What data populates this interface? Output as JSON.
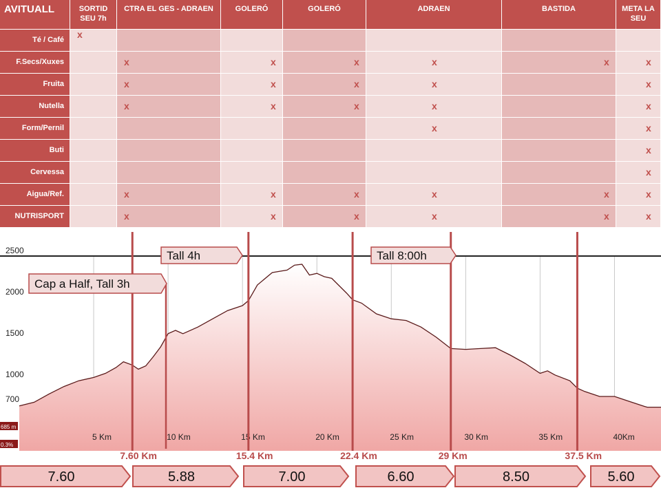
{
  "table": {
    "corner_label": "AVITUALL",
    "columns": [
      "SORTID SEU 7h",
      "CTRA EL GES - ADRAEN",
      "GOLERÓ",
      "GOLERÓ",
      "ADRAEN",
      "BASTIDA",
      "META LA SEU"
    ],
    "rows": [
      {
        "label": "Té / Café",
        "marks": [
          true,
          false,
          false,
          false,
          false,
          false,
          false
        ]
      },
      {
        "label": "F.Secs/Xuxes",
        "marks": [
          false,
          true,
          true,
          true,
          true,
          true,
          true
        ]
      },
      {
        "label": "Fruita",
        "marks": [
          false,
          true,
          true,
          true,
          true,
          false,
          true
        ]
      },
      {
        "label": "Nutella",
        "marks": [
          false,
          true,
          true,
          true,
          true,
          false,
          true
        ]
      },
      {
        "label": "Form/Pernil",
        "marks": [
          false,
          false,
          false,
          false,
          true,
          false,
          true
        ]
      },
      {
        "label": "Buti",
        "marks": [
          false,
          false,
          false,
          false,
          false,
          false,
          true
        ]
      },
      {
        "label": "Cervessa",
        "marks": [
          false,
          false,
          false,
          false,
          false,
          false,
          true
        ]
      },
      {
        "label": "Aigua/Ref.",
        "marks": [
          false,
          true,
          true,
          true,
          true,
          true,
          true
        ]
      },
      {
        "label": "NUTRISPORT",
        "marks": [
          false,
          true,
          true,
          true,
          true,
          true,
          true
        ]
      }
    ],
    "mark_symbol": "x",
    "accent_color": "#c0504d",
    "light_cell_color": "#f2dcdb",
    "dark_cell_color": "#e6b9b8"
  },
  "chart_data": {
    "type": "area",
    "y_ticks": [
      "2500",
      "2000",
      "1500",
      "1000",
      "700"
    ],
    "y_tick_values": [
      2500,
      2000,
      1500,
      1000,
      700
    ],
    "x_ticks": [
      "5 Km",
      "10 Km",
      "15 Km",
      "20 Km",
      "25 Km",
      "30 Km",
      "35 Km",
      "40Km"
    ],
    "x_tick_values": [
      5,
      10,
      15,
      20,
      25,
      30,
      35,
      40
    ],
    "start_elevation_label": "685 m",
    "start_grade_label": "0.3%",
    "profile": [
      [
        0,
        685
      ],
      [
        1,
        730
      ],
      [
        2,
        830
      ],
      [
        3,
        920
      ],
      [
        4,
        990
      ],
      [
        5,
        1030
      ],
      [
        5.8,
        1080
      ],
      [
        6.5,
        1150
      ],
      [
        7,
        1220
      ],
      [
        7.6,
        1180
      ],
      [
        8,
        1130
      ],
      [
        8.5,
        1170
      ],
      [
        9,
        1280
      ],
      [
        9.5,
        1400
      ],
      [
        10,
        1560
      ],
      [
        10.5,
        1600
      ],
      [
        11,
        1560
      ],
      [
        12,
        1640
      ],
      [
        13,
        1740
      ],
      [
        14,
        1840
      ],
      [
        15,
        1900
      ],
      [
        15.4,
        1960
      ],
      [
        16,
        2150
      ],
      [
        17,
        2300
      ],
      [
        18,
        2330
      ],
      [
        18.5,
        2390
      ],
      [
        19,
        2400
      ],
      [
        19.5,
        2270
      ],
      [
        20,
        2290
      ],
      [
        20.5,
        2250
      ],
      [
        21,
        2230
      ],
      [
        22,
        2050
      ],
      [
        22.4,
        1970
      ],
      [
        23,
        1930
      ],
      [
        24,
        1800
      ],
      [
        25,
        1740
      ],
      [
        26,
        1720
      ],
      [
        27,
        1640
      ],
      [
        28,
        1520
      ],
      [
        29,
        1380
      ],
      [
        30,
        1370
      ],
      [
        31,
        1380
      ],
      [
        32,
        1390
      ],
      [
        33,
        1300
      ],
      [
        34,
        1200
      ],
      [
        35,
        1080
      ],
      [
        35.5,
        1110
      ],
      [
        36,
        1060
      ],
      [
        37,
        990
      ],
      [
        37.5,
        900
      ],
      [
        38,
        860
      ],
      [
        39,
        800
      ],
      [
        40,
        800
      ],
      [
        41,
        740
      ],
      [
        42,
        680
      ],
      [
        42.2,
        670
      ]
    ],
    "xlim": [
      0,
      42.2
    ],
    "ylim": [
      700,
      2600
    ],
    "threshold_line": 2500,
    "checkpoints": [
      {
        "km": 7.6,
        "label": "7.60 Km"
      },
      {
        "km": 15.4,
        "label": "15.4 Km"
      },
      {
        "km": 22.4,
        "label": "22.4 Km"
      },
      {
        "km": 29,
        "label": "29 Km"
      },
      {
        "km": 37.5,
        "label": "37.5 Km"
      }
    ],
    "callouts": [
      "Tall 4h",
      "Tall 8:00h",
      "Cap a Half, Tall 3h"
    ],
    "fill_color": "#f2c4c3",
    "line_color": "#5a1a1a",
    "marker_color": "#b84b4b"
  },
  "segments": [
    "7.60",
    "5.88",
    "7.00",
    "6.60",
    "8.50",
    "5.60"
  ]
}
